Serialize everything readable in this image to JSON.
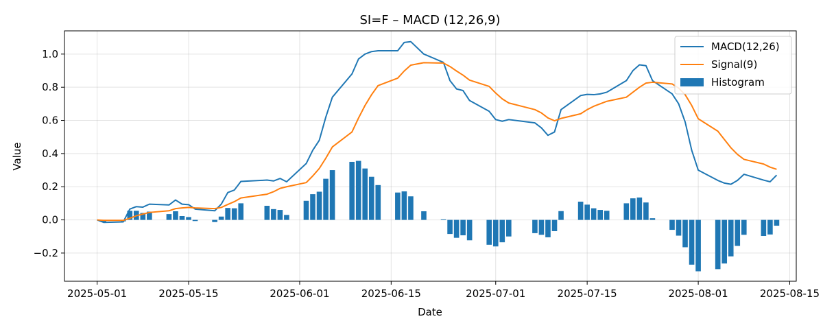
{
  "chart_data": {
    "type": "line",
    "title": "SI=F – MACD (12,26,9)",
    "xlabel": "Date",
    "ylabel": "Value",
    "grid": true,
    "legend_position": "top-right",
    "x_ticks": [
      "2025-05-01",
      "2025-05-15",
      "2025-06-01",
      "2025-06-15",
      "2025-07-01",
      "2025-07-15",
      "2025-08-01",
      "2025-08-15"
    ],
    "y_ticks": [
      "−0.2",
      "0.0",
      "0.2",
      "0.4",
      "0.6",
      "0.8",
      "1.0"
    ],
    "x_range": [
      "2025-04-26",
      "2025-08-16"
    ],
    "ylim": [
      -0.37,
      1.14
    ],
    "dates": [
      "2025-05-01",
      "2025-05-02",
      "2025-05-05",
      "2025-05-06",
      "2025-05-07",
      "2025-05-08",
      "2025-05-09",
      "2025-05-12",
      "2025-05-13",
      "2025-05-14",
      "2025-05-15",
      "2025-05-16",
      "2025-05-19",
      "2025-05-20",
      "2025-05-21",
      "2025-05-22",
      "2025-05-23",
      "2025-05-27",
      "2025-05-28",
      "2025-05-29",
      "2025-05-30",
      "2025-06-02",
      "2025-06-03",
      "2025-06-04",
      "2025-06-05",
      "2025-06-06",
      "2025-06-09",
      "2025-06-10",
      "2025-06-11",
      "2025-06-12",
      "2025-06-13",
      "2025-06-16",
      "2025-06-17",
      "2025-06-18",
      "2025-06-20",
      "2025-06-23",
      "2025-06-24",
      "2025-06-25",
      "2025-06-26",
      "2025-06-27",
      "2025-06-30",
      "2025-07-01",
      "2025-07-02",
      "2025-07-03",
      "2025-07-07",
      "2025-07-08",
      "2025-07-09",
      "2025-07-10",
      "2025-07-11",
      "2025-07-14",
      "2025-07-15",
      "2025-07-16",
      "2025-07-17",
      "2025-07-18",
      "2025-07-21",
      "2025-07-22",
      "2025-07-23",
      "2025-07-24",
      "2025-07-25",
      "2025-07-28",
      "2025-07-29",
      "2025-07-30",
      "2025-07-31",
      "2025-08-01",
      "2025-08-04",
      "2025-08-05",
      "2025-08-06",
      "2025-08-07",
      "2025-08-08",
      "2025-08-11",
      "2025-08-12",
      "2025-08-13"
    ],
    "series": [
      {
        "name": "MACD(12,26)",
        "kind": "line",
        "color": "#1f77b4",
        "values": [
          0.0,
          -0.015,
          -0.012,
          0.065,
          0.08,
          0.077,
          0.095,
          0.09,
          0.12,
          0.095,
          0.092,
          0.065,
          0.055,
          0.095,
          0.165,
          0.18,
          0.232,
          0.24,
          0.235,
          0.25,
          0.23,
          0.34,
          0.42,
          0.48,
          0.62,
          0.74,
          0.88,
          0.97,
          1.0,
          1.015,
          1.02,
          1.02,
          1.07,
          1.075,
          1.0,
          0.95,
          0.84,
          0.79,
          0.78,
          0.72,
          0.655,
          0.605,
          0.595,
          0.605,
          0.585,
          0.555,
          0.51,
          0.53,
          0.665,
          0.75,
          0.757,
          0.755,
          0.76,
          0.77,
          0.84,
          0.9,
          0.935,
          0.93,
          0.84,
          0.76,
          0.7,
          0.59,
          0.42,
          0.3,
          0.238,
          0.222,
          0.215,
          0.238,
          0.275,
          0.24,
          0.23,
          0.27
        ]
      },
      {
        "name": "Signal(9)",
        "kind": "line",
        "color": "#ff7f0e",
        "values": [
          0.0,
          -0.003,
          -0.003,
          0.01,
          0.025,
          0.035,
          0.045,
          0.055,
          0.068,
          0.072,
          0.075,
          0.072,
          0.068,
          0.075,
          0.093,
          0.11,
          0.132,
          0.155,
          0.17,
          0.19,
          0.2,
          0.225,
          0.265,
          0.31,
          0.372,
          0.44,
          0.53,
          0.614,
          0.69,
          0.755,
          0.81,
          0.855,
          0.898,
          0.933,
          0.948,
          0.946,
          0.925,
          0.898,
          0.873,
          0.843,
          0.805,
          0.765,
          0.73,
          0.705,
          0.665,
          0.645,
          0.615,
          0.598,
          0.612,
          0.64,
          0.665,
          0.685,
          0.7,
          0.715,
          0.74,
          0.77,
          0.8,
          0.825,
          0.83,
          0.82,
          0.795,
          0.755,
          0.69,
          0.61,
          0.535,
          0.485,
          0.435,
          0.395,
          0.365,
          0.337,
          0.318,
          0.305
        ]
      },
      {
        "name": "Histogram",
        "kind": "bar",
        "color": "#1f77b4",
        "values": [
          0.0,
          -0.012,
          -0.009,
          0.055,
          0.055,
          0.042,
          0.05,
          0.035,
          0.052,
          0.023,
          0.017,
          -0.007,
          -0.013,
          0.02,
          0.072,
          0.07,
          0.1,
          0.085,
          0.065,
          0.06,
          0.03,
          0.115,
          0.155,
          0.17,
          0.248,
          0.3,
          0.35,
          0.356,
          0.31,
          0.26,
          0.21,
          0.165,
          0.172,
          0.142,
          0.052,
          0.004,
          -0.085,
          -0.108,
          -0.093,
          -0.123,
          -0.15,
          -0.16,
          -0.135,
          -0.1,
          -0.08,
          -0.09,
          -0.105,
          -0.068,
          0.053,
          0.11,
          0.092,
          0.07,
          0.06,
          0.055,
          0.1,
          0.13,
          0.135,
          0.105,
          0.01,
          -0.06,
          -0.095,
          -0.165,
          -0.27,
          -0.31,
          -0.297,
          -0.263,
          -0.22,
          -0.157,
          -0.09,
          -0.097,
          -0.088,
          -0.035
        ]
      }
    ]
  }
}
